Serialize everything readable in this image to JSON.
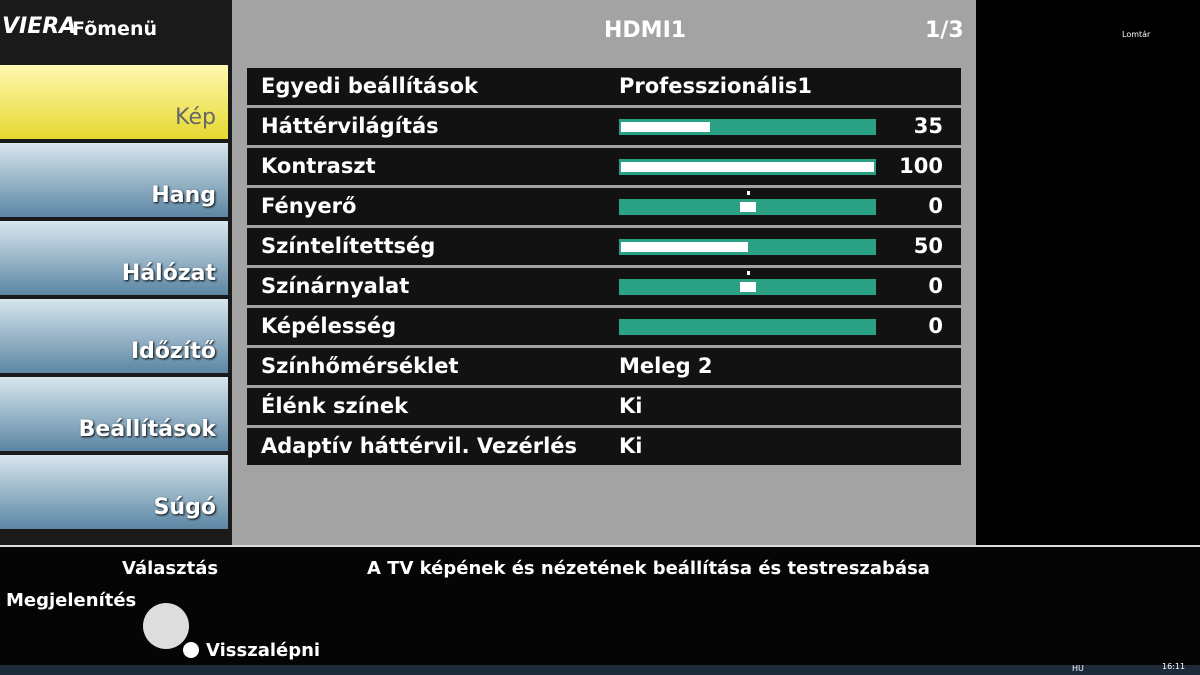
{
  "header": {
    "brand": "VIERA",
    "title": "Fõmenü",
    "source": "HDMI1",
    "page": "1/3"
  },
  "menu": [
    {
      "label": "Kép",
      "selected": true
    },
    {
      "label": "Hang",
      "selected": false
    },
    {
      "label": "Hálózat",
      "selected": false
    },
    {
      "label": "Időzítő",
      "selected": false
    },
    {
      "label": "Beállítások",
      "selected": false
    },
    {
      "label": "Súgó",
      "selected": false
    }
  ],
  "settings": [
    {
      "label": "Egyedi beállítások",
      "text": "Professzionális1"
    },
    {
      "label": "Háttérvilágítás",
      "value": 35,
      "slider": "bar",
      "range": [
        0,
        100
      ]
    },
    {
      "label": "Kontraszt",
      "value": 100,
      "slider": "bar",
      "range": [
        0,
        100
      ]
    },
    {
      "label": "Fényerő",
      "value": 0,
      "slider": "center",
      "range": [
        -30,
        30
      ]
    },
    {
      "label": "Színtelítettség",
      "value": 50,
      "slider": "bar",
      "range": [
        0,
        100
      ]
    },
    {
      "label": "Színárnyalat",
      "value": 0,
      "slider": "center",
      "range": [
        -30,
        30
      ]
    },
    {
      "label": "Képélesség",
      "value": 0,
      "slider": "bar",
      "range": [
        0,
        100
      ]
    },
    {
      "label": "Színhőmérséklet",
      "text": "Meleg 2"
    },
    {
      "label": "Élénk színek",
      "text": "Ki"
    },
    {
      "label": "Adaptív háttérvil. Vezérlés",
      "text": "Ki"
    }
  ],
  "help": {
    "description": "A TV képének és nézetének beállítása és testreszabása",
    "select": "Választás",
    "display": "Megjelenítés",
    "back": "Visszalépni"
  },
  "desktop": {
    "recycle_bin": "Lomtár",
    "language": "HU",
    "clock": "16:11"
  }
}
